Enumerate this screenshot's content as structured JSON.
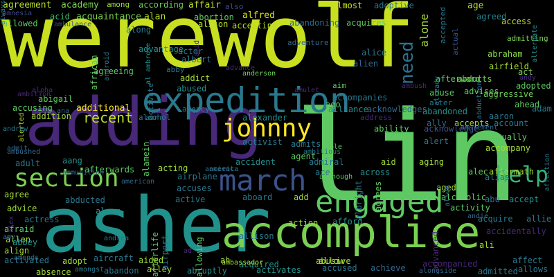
{
  "palette": {
    "background": "#000000",
    "yellow": "#d9e021",
    "yellow_green": "#b5de2b",
    "light_green": "#8fd744",
    "green": "#6ccd5a",
    "sea_green": "#3dbc74",
    "teal_green": "#22a884",
    "teal": "#21918c",
    "blue_teal": "#2a788e",
    "slate": "#355f8d",
    "indigo": "#414487",
    "purple": "#482878",
    "dark_purple": "#440154"
  },
  "words": [
    {
      "text": "werewolf",
      "color": "#c8e020",
      "rotated": false
    },
    {
      "text": "lin",
      "color": "#5ec962",
      "rotated": false
    },
    {
      "text": "asher",
      "color": "#21918c",
      "rotated": false
    },
    {
      "text": "adding",
      "color": "#482878",
      "rotated": false
    },
    {
      "text": "accomplice",
      "color": "#7ad151",
      "rotated": false
    },
    {
      "text": "expedition",
      "color": "#2a788e",
      "rotated": false
    },
    {
      "text": "engaged",
      "color": "#5ec962",
      "rotated": false
    },
    {
      "text": "march",
      "color": "#3b528b",
      "rotated": false
    },
    {
      "text": "johnny",
      "color": "#fde725",
      "rotated": false
    },
    {
      "text": "section",
      "color": "#7ad151",
      "rotated": false
    },
    {
      "text": "help",
      "color": "#35b779",
      "rotated": false
    },
    {
      "text": "need",
      "color": "#2c728e",
      "rotated": true
    },
    {
      "text": "alone",
      "color": "#a2da37",
      "rotated": true
    },
    {
      "text": "recent",
      "color": "#bddf26",
      "rotated": false
    },
    {
      "text": "agreement",
      "color": "#b5de2b",
      "rotated": false
    },
    {
      "text": "academy",
      "color": "#7ad151",
      "rotated": false
    },
    {
      "text": "among",
      "color": "#9fda3a",
      "rotated": false
    },
    {
      "text": "according",
      "color": "#6ece58",
      "rotated": false
    },
    {
      "text": "affair",
      "color": "#b5de2b",
      "rotated": false
    },
    {
      "text": "alfred",
      "color": "#d2e21b",
      "rotated": false
    },
    {
      "text": "also",
      "color": "#3e4989",
      "rotated": false
    },
    {
      "text": "almost",
      "color": "#d0e11c",
      "rotated": false
    },
    {
      "text": "adoptive",
      "color": "#2a788e",
      "rotated": false
    },
    {
      "text": "age",
      "color": "#b5de2b",
      "rotated": false
    },
    {
      "text": "amnesia",
      "color": "#3e4989",
      "rotated": false
    },
    {
      "text": "acid",
      "color": "#3dbc74",
      "rotated": false
    },
    {
      "text": "acquaintance",
      "color": "#7ad151",
      "rotated": false
    },
    {
      "text": "alan",
      "color": "#b5de2b",
      "rotated": false
    },
    {
      "text": "abortion",
      "color": "#5ec962",
      "rotated": false
    },
    {
      "text": "accepting",
      "color": "#b5de2b",
      "rotated": false
    },
    {
      "text": "abandoning",
      "color": "#31688e",
      "rotated": false
    },
    {
      "text": "acquires",
      "color": "#5ec962",
      "rotated": false
    },
    {
      "text": "agreed",
      "color": "#26828e",
      "rotated": false
    },
    {
      "text": "access",
      "color": "#bddf26",
      "rotated": false
    },
    {
      "text": "allowed",
      "color": "#5ec962",
      "rotated": false
    },
    {
      "text": "ambulance",
      "color": "#3e4989",
      "rotated": false
    },
    {
      "text": "alison",
      "color": "#b5de2b",
      "rotated": false
    },
    {
      "text": "adventure",
      "color": "#31688e",
      "rotated": false
    },
    {
      "text": "along",
      "color": "#2a788e",
      "rotated": false
    },
    {
      "text": "advantage",
      "color": "#21918c",
      "rotated": false
    },
    {
      "text": "accepted",
      "color": "#2a788e",
      "rotated": true
    },
    {
      "text": "actual",
      "color": "#3b528b",
      "rotated": true
    },
    {
      "text": "admitting",
      "color": "#7ad151",
      "rotated": false
    },
    {
      "text": "abraham",
      "color": "#86d549",
      "rotated": false
    },
    {
      "text": "airfield",
      "color": "#a5db36",
      "rotated": false
    },
    {
      "text": "act",
      "color": "#7ad151",
      "rotated": false
    },
    {
      "text": "abducts",
      "color": "#7ad151",
      "rotated": false
    },
    {
      "text": "abduction",
      "color": "#2a788e",
      "rotated": true
    },
    {
      "text": "african",
      "color": "#5ec962",
      "rotated": true
    },
    {
      "text": "al ambrose",
      "color": "#21918c",
      "rotated": true
    },
    {
      "text": "actor",
      "color": "#2a788e",
      "rotated": false
    },
    {
      "text": "albert",
      "color": "#2a788e",
      "rotated": false
    },
    {
      "text": "alice",
      "color": "#2a788e",
      "rotated": false
    },
    {
      "text": "alien",
      "color": "#31688e",
      "rotated": false
    },
    {
      "text": "afterward",
      "color": "#5ec962",
      "rotated": false
    },
    {
      "text": "adopted",
      "color": "#5ec962",
      "rotated": false
    },
    {
      "text": "aggressive",
      "color": "#6ece58",
      "rotated": false
    },
    {
      "text": "affection",
      "color": "#2a788e",
      "rotated": true
    },
    {
      "text": "agreeing",
      "color": "#5ec962",
      "rotated": false
    },
    {
      "text": "abby",
      "color": "#2a788e",
      "rotated": false
    },
    {
      "text": "addict",
      "color": "#a2da37",
      "rotated": false
    },
    {
      "text": "advance",
      "color": "#482878",
      "rotated": false
    },
    {
      "text": "anderson",
      "color": "#6ece58",
      "rotated": false
    },
    {
      "text": "aim",
      "color": "#5ec962",
      "rotated": false
    },
    {
      "text": "accompanies",
      "color": "#2a788e",
      "rotated": false
    },
    {
      "text": "abuse",
      "color": "#5ec962",
      "rotated": false
    },
    {
      "text": "advises",
      "color": "#5ec962",
      "rotated": false
    },
    {
      "text": "ahead",
      "color": "#5ec962",
      "rotated": false
    },
    {
      "text": "adam",
      "color": "#2a788e",
      "rotated": false
    },
    {
      "text": "alerted",
      "color": "#b5de2b",
      "rotated": true
    },
    {
      "text": "abigail",
      "color": "#5ec962",
      "rotated": false
    },
    {
      "text": "abused",
      "color": "#21918c",
      "rotated": false
    },
    {
      "text": "ago",
      "color": "#5ec962",
      "rotated": false
    },
    {
      "text": "alliance",
      "color": "#21918c",
      "rotated": false
    },
    {
      "text": "acknowledges",
      "color": "#31688e",
      "rotated": false
    },
    {
      "text": "alter",
      "color": "#2a788e",
      "rotated": false
    },
    {
      "text": "accusing",
      "color": "#5ec962",
      "rotated": false
    },
    {
      "text": "additional",
      "color": "#fde725",
      "rotated": false
    },
    {
      "text": "agency",
      "color": "#2a788e",
      "rotated": false
    },
    {
      "text": "alcohol",
      "color": "#2a788e",
      "rotated": false
    },
    {
      "text": "alexander",
      "color": "#21918c",
      "rotated": false
    },
    {
      "text": "abandoned",
      "color": "#21918c",
      "rotated": false
    },
    {
      "text": "ally",
      "color": "#31688e",
      "rotated": false
    },
    {
      "text": "accepts",
      "color": "#a2da37",
      "rotated": false
    },
    {
      "text": "aaron",
      "color": "#2a788e",
      "rotated": false
    },
    {
      "text": "account",
      "color": "#2a788e",
      "rotated": false
    },
    {
      "text": "addition",
      "color": "#a2da37",
      "rotated": false
    },
    {
      "text": "andrew",
      "color": "#2a788e",
      "rotated": false
    },
    {
      "text": "address",
      "color": "#482878",
      "rotated": false
    },
    {
      "text": "acknowledge",
      "color": "#3b528b",
      "rotated": false
    },
    {
      "text": "ability",
      "color": "#5ec962",
      "rotated": false
    },
    {
      "text": "actually",
      "color": "#5ec962",
      "rotated": false
    },
    {
      "text": "activist",
      "color": "#2a788e",
      "rotated": false
    },
    {
      "text": "admits",
      "color": "#2a788e",
      "rotated": false
    },
    {
      "text": "able",
      "color": "#5ec962",
      "rotated": false
    },
    {
      "text": "alert",
      "color": "#2a788e",
      "rotated": false
    },
    {
      "text": "accompany",
      "color": "#a2da37",
      "rotated": false
    },
    {
      "text": "adult",
      "color": "#2a788e",
      "rotated": false
    },
    {
      "text": "accident",
      "color": "#21918c",
      "rotated": false
    },
    {
      "text": "agent",
      "color": "#5ec962",
      "rotated": false
    },
    {
      "text": "admiral",
      "color": "#2a788e",
      "rotated": false
    },
    {
      "text": "aid",
      "color": "#a2da37",
      "rotated": false
    },
    {
      "text": "aging",
      "color": "#a2da37",
      "rotated": false
    },
    {
      "text": "aftermath",
      "color": "#a2da37",
      "rotated": false
    },
    {
      "text": "aang",
      "color": "#21918c",
      "rotated": false
    },
    {
      "text": "acting",
      "color": "#a2da37",
      "rotated": false
    },
    {
      "text": "afterwards",
      "color": "#5ec962",
      "rotated": false
    },
    {
      "text": "ace",
      "color": "#2a788e",
      "rotated": false
    },
    {
      "text": "across",
      "color": "#21918c",
      "rotated": false
    },
    {
      "text": "alec",
      "color": "#5ec962",
      "rotated": false
    },
    {
      "text": "alias",
      "color": "#2a788e",
      "rotated": false
    },
    {
      "text": "agree",
      "color": "#a2da37",
      "rotated": false
    },
    {
      "text": "airplane",
      "color": "#2a788e",
      "rotated": false
    },
    {
      "text": "accuses",
      "color": "#2a788e",
      "rotated": false
    },
    {
      "text": "although",
      "color": "#5ec962",
      "rotated": false
    },
    {
      "text": "aged",
      "color": "#a2da37",
      "rotated": false
    },
    {
      "text": "alcoholic",
      "color": "#5ec962",
      "rotated": false
    },
    {
      "text": "abu",
      "color": "#2a788e",
      "rotated": false
    },
    {
      "text": "accept",
      "color": "#21918c",
      "rotated": false
    },
    {
      "text": "active",
      "color": "#2a788e",
      "rotated": false
    },
    {
      "text": "aboard",
      "color": "#2a788e",
      "rotated": false
    },
    {
      "text": "add",
      "color": "#a2da37",
      "rotated": false
    },
    {
      "text": "advice",
      "color": "#a2da37",
      "rotated": false
    },
    {
      "text": "abducted",
      "color": "#2a788e",
      "rotated": false
    },
    {
      "text": "alarm",
      "color": "#21918c",
      "rotated": false
    },
    {
      "text": "activity",
      "color": "#5ec962",
      "rotated": false
    },
    {
      "text": "acquire",
      "color": "#2a788e",
      "rotated": false
    },
    {
      "text": "allie",
      "color": "#2a788e",
      "rotated": false
    },
    {
      "text": "actress",
      "color": "#2a788e",
      "rotated": false
    },
    {
      "text": "afraid",
      "color": "#5ec962",
      "rotated": false
    },
    {
      "text": "allen",
      "color": "#a2da37",
      "rotated": false
    },
    {
      "text": "accidentally",
      "color": "#482878",
      "rotated": false
    },
    {
      "text": "allison",
      "color": "#2a788e",
      "rotated": false
    },
    {
      "text": "action",
      "color": "#a2da37",
      "rotated": false
    },
    {
      "text": "afford",
      "color": "#21918c",
      "rotated": false
    },
    {
      "text": "abbey",
      "color": "#21918c",
      "rotated": false
    },
    {
      "text": "andrea",
      "color": "#2a788e",
      "rotated": false
    },
    {
      "text": "ali",
      "color": "#a2da37",
      "rotated": false
    },
    {
      "text": "align",
      "color": "#a2da37",
      "rotated": false
    },
    {
      "text": "activated",
      "color": "#2a788e",
      "rotated": false
    },
    {
      "text": "adopt",
      "color": "#a2da37",
      "rotated": false
    },
    {
      "text": "aircraft",
      "color": "#2a788e",
      "rotated": false
    },
    {
      "text": "aided",
      "color": "#a2da37",
      "rotated": false
    },
    {
      "text": "ah",
      "color": "#a2da37",
      "rotated": false
    },
    {
      "text": "acquired",
      "color": "#21918c",
      "rotated": false
    },
    {
      "text": "abusive",
      "color": "#a2da37",
      "rotated": false
    },
    {
      "text": "allow",
      "color": "#a2da37",
      "rotated": false
    },
    {
      "text": "affect",
      "color": "#2a788e",
      "rotated": false
    },
    {
      "text": "absence",
      "color": "#a2da37",
      "rotated": false
    },
    {
      "text": "abandon",
      "color": "#2a788e",
      "rotated": false
    },
    {
      "text": "alley",
      "color": "#a2da37",
      "rotated": false
    },
    {
      "text": "abruptly",
      "color": "#21918c",
      "rotated": false
    },
    {
      "text": "activates",
      "color": "#21918c",
      "rotated": false
    },
    {
      "text": "accused",
      "color": "#2a788e",
      "rotated": false
    },
    {
      "text": "achieve",
      "color": "#31688e",
      "rotated": false
    },
    {
      "text": "accompanied",
      "color": "#482878",
      "rotated": false
    },
    {
      "text": "admitted",
      "color": "#2a788e",
      "rotated": false
    },
    {
      "text": "allows",
      "color": "#2a788e",
      "rotated": false
    },
    {
      "text": "amongst",
      "color": "#2a788e",
      "rotated": false
    },
    {
      "text": "alongside",
      "color": "#31688e",
      "rotated": false
    },
    {
      "text": "activate",
      "color": "#2a788e",
      "rotated": true
    },
    {
      "text": "afterlife",
      "color": "#5ec962",
      "rotated": true
    },
    {
      "text": "advanced",
      "color": "#482878",
      "rotated": true
    },
    {
      "text": "airport",
      "color": "#2a788e",
      "rotated": true
    },
    {
      "text": "allowing",
      "color": "#5ec962",
      "rotated": true
    },
    {
      "text": "albright",
      "color": "#2a788e",
      "rotated": true
    },
    {
      "text": "agrees",
      "color": "#5ec962",
      "rotated": true
    },
    {
      "text": "alamein",
      "color": "#5ec962",
      "rotated": true
    },
    {
      "text": "alive",
      "color": "#2a788e",
      "rotated": true
    },
    {
      "text": "alex",
      "color": "#482878",
      "rotated": true
    },
    {
      "text": "alternate",
      "color": "#21918c",
      "rotated": true
    },
    {
      "text": "already",
      "color": "#2a788e",
      "rotated": true
    },
    {
      "text": "android",
      "color": "#2a788e",
      "rotated": true
    },
    {
      "text": "amid",
      "color": "#482878",
      "rotated": true
    },
    {
      "text": "ambition",
      "color": "#482878",
      "rotated": false
    },
    {
      "text": "alpha",
      "color": "#482878",
      "rotated": false
    },
    {
      "text": "amulet",
      "color": "#482878",
      "rotated": false
    },
    {
      "text": "ambush",
      "color": "#482878",
      "rotated": false
    },
    {
      "text": "andy",
      "color": "#482878",
      "rotated": false
    },
    {
      "text": "ana",
      "color": "#31688e",
      "rotated": false
    },
    {
      "text": "air",
      "color": "#2a788e",
      "rotated": false
    },
    {
      "text": "amusement",
      "color": "#31688e",
      "rotated": false
    },
    {
      "text": "ancient",
      "color": "#31688e",
      "rotated": false
    },
    {
      "text": "america",
      "color": "#2a788e",
      "rotated": false
    },
    {
      "text": "ambitious",
      "color": "#2a788e",
      "rotated": false
    },
    {
      "text": "ammunition",
      "color": "#31688e",
      "rotated": false
    },
    {
      "text": "american",
      "color": "#31688e",
      "rotated": false
    },
    {
      "text": "andie",
      "color": "#31688e",
      "rotated": false
    },
    {
      "text": "amy",
      "color": "#31688e",
      "rotated": false
    },
    {
      "text": "amends",
      "color": "#31688e",
      "rotated": false
    },
    {
      "text": "ambushed",
      "color": "#31688e",
      "rotated": false
    },
    {
      "text": "admit",
      "color": "#31688e",
      "rotated": false
    },
    {
      "text": "ad",
      "color": "#482878",
      "rotated": false
    },
    {
      "text": "ambassador",
      "color": "#a2da37",
      "rotated": false
    },
    {
      "text": "always",
      "color": "#2a788e",
      "rotated": true
    }
  ]
}
